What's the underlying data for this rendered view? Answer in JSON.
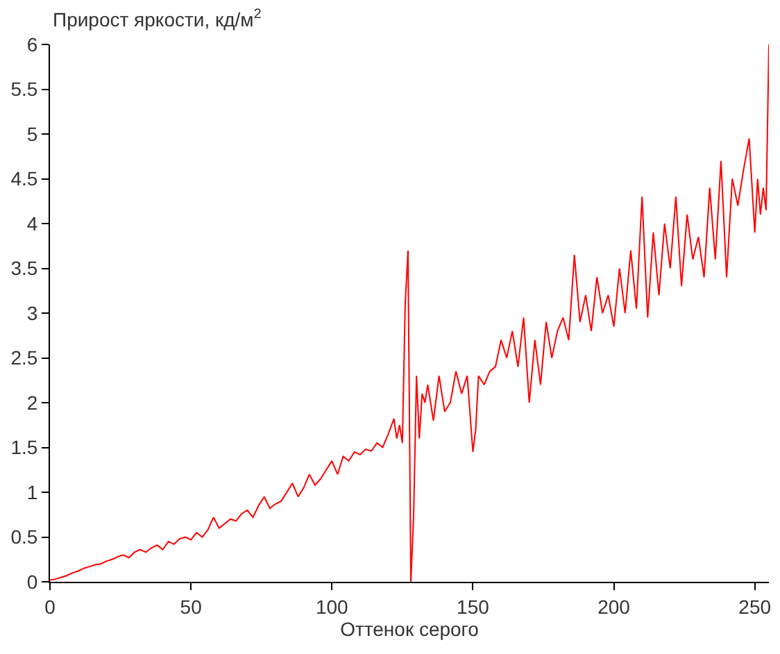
{
  "chart_data": {
    "type": "line",
    "ylabel": "Прирост яркости, кд/м$^{2}$",
    "xlabel": "Оттенок серого",
    "x": [
      0,
      2,
      4,
      6,
      8,
      10,
      12,
      14,
      16,
      18,
      20,
      22,
      24,
      26,
      28,
      30,
      32,
      34,
      36,
      38,
      40,
      42,
      44,
      46,
      48,
      50,
      52,
      54,
      56,
      58,
      60,
      62,
      64,
      66,
      68,
      70,
      72,
      74,
      76,
      78,
      80,
      82,
      84,
      86,
      88,
      90,
      92,
      94,
      96,
      98,
      100,
      102,
      104,
      106,
      108,
      110,
      112,
      114,
      116,
      118,
      120,
      122,
      123,
      124,
      125,
      126,
      127,
      128,
      129,
      130,
      131,
      132,
      133,
      134,
      136,
      138,
      140,
      142,
      144,
      146,
      148,
      150,
      151,
      152,
      154,
      156,
      158,
      160,
      162,
      164,
      166,
      168,
      170,
      172,
      174,
      176,
      178,
      180,
      182,
      184,
      186,
      188,
      190,
      192,
      194,
      196,
      198,
      200,
      202,
      204,
      206,
      208,
      210,
      212,
      214,
      216,
      218,
      220,
      222,
      224,
      226,
      228,
      230,
      232,
      234,
      236,
      238,
      240,
      242,
      244,
      246,
      248,
      250,
      251,
      252,
      253,
      254,
      255
    ],
    "series": [
      {
        "color": "#ff0000",
        "values": [
          0.02,
          0.03,
          0.05,
          0.07,
          0.1,
          0.12,
          0.15,
          0.17,
          0.19,
          0.2,
          0.23,
          0.25,
          0.28,
          0.3,
          0.27,
          0.33,
          0.36,
          0.33,
          0.38,
          0.41,
          0.36,
          0.45,
          0.42,
          0.48,
          0.5,
          0.47,
          0.55,
          0.5,
          0.58,
          0.72,
          0.6,
          0.65,
          0.7,
          0.68,
          0.76,
          0.8,
          0.72,
          0.85,
          0.95,
          0.82,
          0.87,
          0.9,
          1.0,
          1.1,
          0.95,
          1.05,
          1.2,
          1.08,
          1.15,
          1.25,
          1.35,
          1.2,
          1.4,
          1.35,
          1.45,
          1.42,
          1.48,
          1.46,
          1.55,
          1.5,
          1.65,
          1.82,
          1.6,
          1.75,
          1.55,
          3.1,
          3.7,
          0.0,
          0.75,
          2.3,
          1.6,
          2.1,
          2.0,
          2.2,
          1.8,
          2.3,
          1.9,
          2.0,
          2.35,
          2.1,
          2.3,
          1.45,
          1.7,
          2.3,
          2.2,
          2.35,
          2.4,
          2.7,
          2.5,
          2.8,
          2.4,
          2.95,
          2.0,
          2.7,
          2.2,
          2.9,
          2.5,
          2.8,
          2.95,
          2.7,
          3.65,
          2.9,
          3.2,
          2.8,
          3.4,
          3.0,
          3.2,
          2.85,
          3.5,
          3.0,
          3.7,
          3.05,
          4.3,
          2.95,
          3.9,
          3.2,
          4.0,
          3.5,
          4.3,
          3.3,
          4.1,
          3.6,
          3.85,
          3.4,
          4.4,
          3.6,
          4.7,
          3.4,
          4.5,
          4.2,
          4.6,
          4.95,
          3.9,
          4.5,
          4.1,
          4.4,
          4.15,
          6.0
        ]
      }
    ],
    "xlim": [
      0,
      255
    ],
    "xticks": [
      0,
      50,
      100,
      150,
      200,
      250
    ],
    "ylim": [
      0,
      6
    ],
    "yticks": [
      0,
      0.5,
      1,
      1.5,
      2,
      2.5,
      3,
      3.5,
      4,
      4.5,
      5,
      5.5,
      6
    ],
    "marker": "none",
    "line_style": "solid"
  }
}
